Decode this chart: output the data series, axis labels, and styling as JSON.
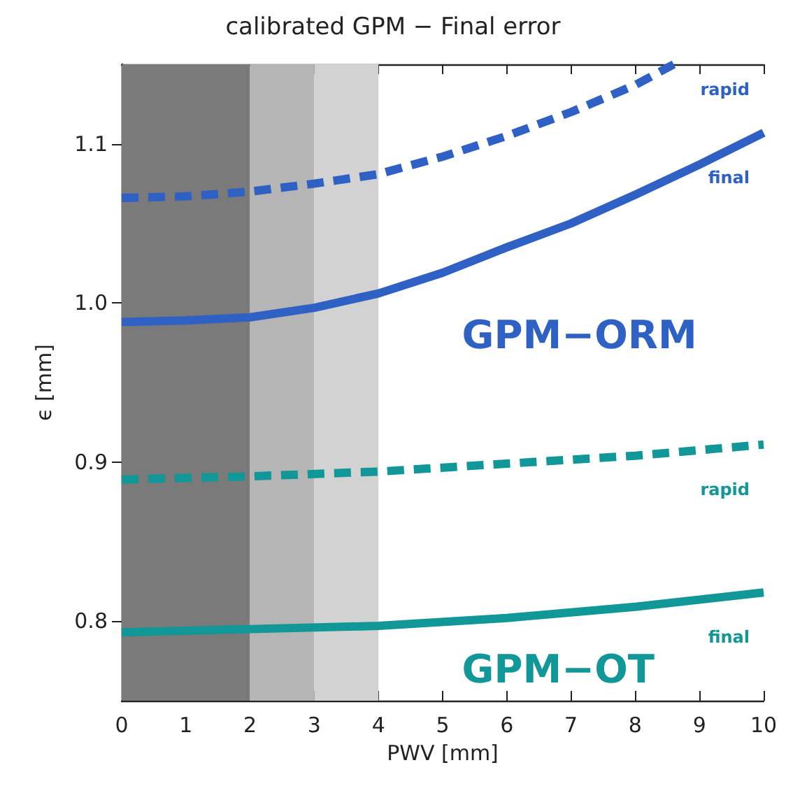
{
  "chart_data": {
    "type": "line",
    "title": "calibrated GPM − Final error",
    "xlabel": "PWV [mm]",
    "ylabel": "ϵ [mm]",
    "xlim": [
      0,
      10
    ],
    "xticks": [
      0,
      1,
      2,
      3,
      4,
      5,
      6,
      7,
      8,
      9,
      10
    ],
    "ylim": [
      0.75,
      1.15
    ],
    "yticks": [
      {
        "value": 0.8,
        "label": "0.8"
      },
      {
        "value": 0.9,
        "label": "0.9"
      },
      {
        "value": 1.0,
        "label": "1.0"
      },
      {
        "value": 1.1,
        "label": "1.1"
      }
    ],
    "grid": false,
    "legend": false,
    "marker": "none",
    "annotations": [
      "GPM−ORM",
      "GPM−OT"
    ],
    "bands": [
      {
        "axis": "x",
        "from": 0,
        "to": 2,
        "color": "#7a7a7a"
      },
      {
        "axis": "x",
        "from": 2,
        "to": 3,
        "color": "#b5b5b5"
      },
      {
        "axis": "x",
        "from": 3,
        "to": 4,
        "color": "#d2d2d2"
      }
    ],
    "series": [
      {
        "name": "rapid",
        "color": "#2f60c4",
        "line_style": "dashed",
        "x": [
          0,
          1,
          2,
          3,
          4,
          5,
          6,
          7,
          8,
          8.6
        ],
        "values": [
          1.066,
          1.067,
          1.07,
          1.075,
          1.081,
          1.092,
          1.105,
          1.12,
          1.137,
          1.15
        ]
      },
      {
        "name": "final",
        "color": "#2f60c4",
        "line_style": "solid",
        "x": [
          0,
          1,
          2,
          3,
          4,
          5,
          6,
          7,
          8,
          9,
          10
        ],
        "values": [
          0.988,
          0.989,
          0.991,
          0.997,
          1.006,
          1.019,
          1.035,
          1.05,
          1.068,
          1.087,
          1.107
        ]
      },
      {
        "name": "rapid",
        "color": "#119797",
        "line_style": "dashed",
        "x": [
          0,
          2,
          4,
          6,
          8,
          10
        ],
        "values": [
          0.889,
          0.891,
          0.894,
          0.899,
          0.904,
          0.911
        ]
      },
      {
        "name": "final",
        "color": "#119797",
        "line_style": "solid",
        "x": [
          0,
          2,
          4,
          6,
          8,
          10
        ],
        "values": [
          0.793,
          0.795,
          0.797,
          0.802,
          0.809,
          0.818
        ]
      }
    ]
  }
}
